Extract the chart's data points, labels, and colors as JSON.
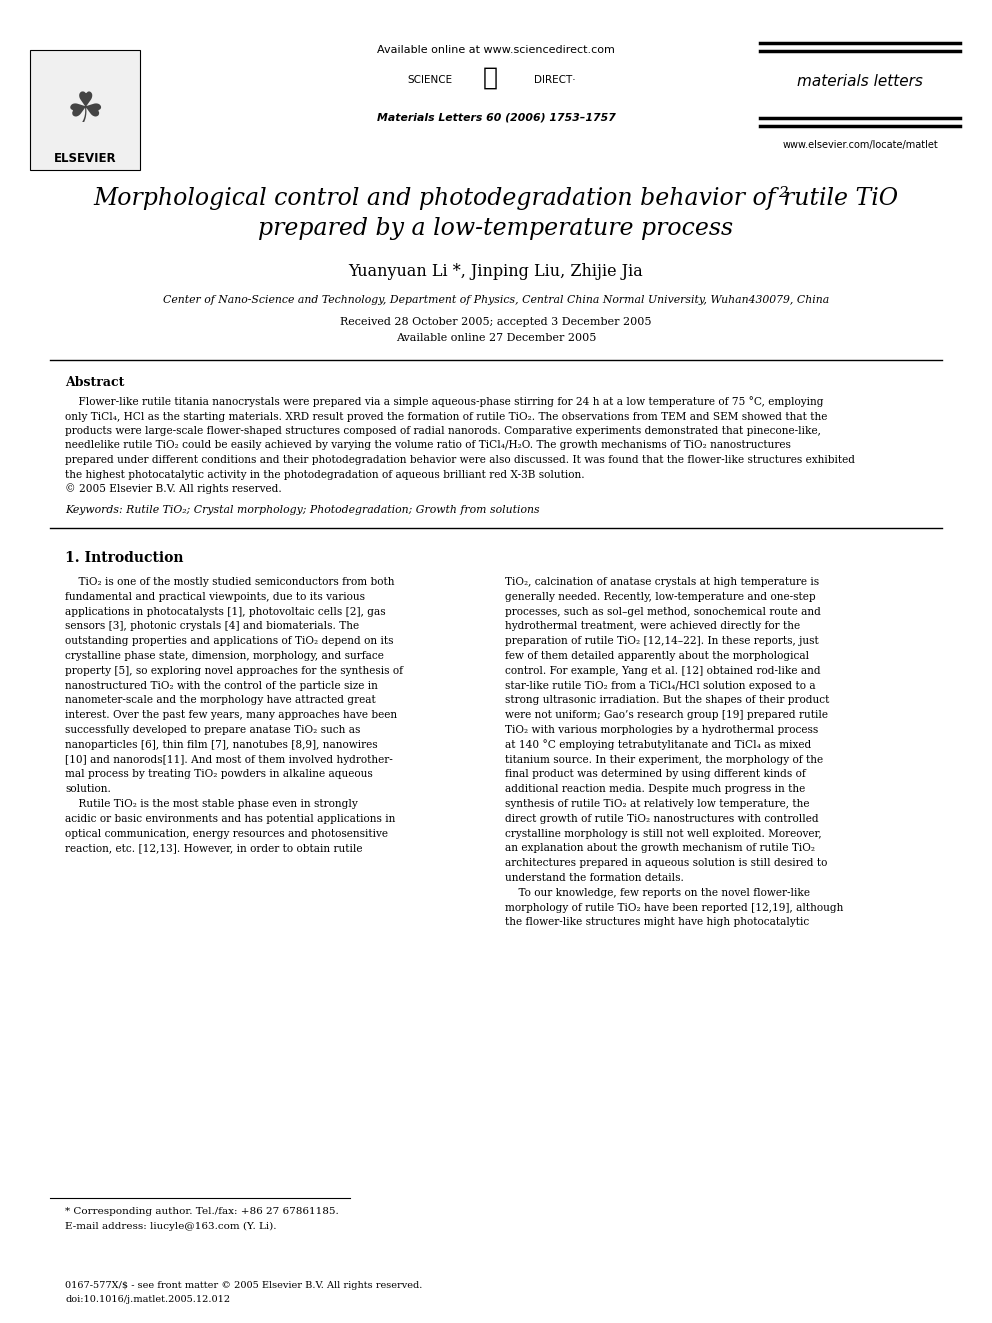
{
  "bg_color": "#ffffff",
  "page_width": 9.92,
  "page_height": 13.23,
  "header_available_online": "Available online at www.sciencedirect.com",
  "header_journal_name": "materials letters",
  "header_journal_ref": "Materials Letters 60 (2006) 1753–1757",
  "header_website": "www.elsevier.com/locate/matlet",
  "title_line1": "Morphological control and photodegradation behavior of rutile TiO",
  "title_line1_sub": "2",
  "title_line2": "prepared by a low-temperature process",
  "authors": "Yuanyuan Li *, Jinping Liu, Zhijie Jia",
  "affiliation": "Center of Nano-Science and Technology, Department of Physics, Central China Normal University, Wuhan430079, China",
  "received": "Received 28 October 2005; accepted 3 December 2005",
  "available": "Available online 27 December 2005",
  "abstract_title": "Abstract",
  "keywords": "Keywords: Rutile TiO₂; Crystal morphology; Photodegradation; Growth from solutions",
  "section1_title": "1. Introduction",
  "footnote1": "* Corresponding author. Tel./fax: +86 27 67861185.",
  "footnote2": "E-mail address: liucyle@163.com (Y. Li).",
  "footer1": "0167-577X/$ - see front matter © 2005 Elsevier B.V. All rights reserved.",
  "footer2": "doi:10.1016/j.matlet.2005.12.012",
  "abstract_lines": [
    "    Flower-like rutile titania nanocrystals were prepared via a simple aqueous-phase stirring for 24 h at a low temperature of 75 °C, employing",
    "only TiCl₄, HCl as the starting materials. XRD result proved the formation of rutile TiO₂. The observations from TEM and SEM showed that the",
    "products were large-scale flower-shaped structures composed of radial nanorods. Comparative experiments demonstrated that pinecone-like,",
    "needlelike rutile TiO₂ could be easily achieved by varying the volume ratio of TiCl₄/H₂O. The growth mechanisms of TiO₂ nanostructures",
    "prepared under different conditions and their photodegradation behavior were also discussed. It was found that the flower-like structures exhibited",
    "the highest photocatalytic activity in the photodegradation of aqueous brilliant red X-3B solution.",
    "© 2005 Elsevier B.V. All rights reserved."
  ],
  "left_col_lines": [
    "    TiO₂ is one of the mostly studied semiconductors from both",
    "fundamental and practical viewpoints, due to its various",
    "applications in photocatalysts [1], photovoltaic cells [2], gas",
    "sensors [3], photonic crystals [4] and biomaterials. The",
    "outstanding properties and applications of TiO₂ depend on its",
    "crystalline phase state, dimension, morphology, and surface",
    "property [5], so exploring novel approaches for the synthesis of",
    "nanostructured TiO₂ with the control of the particle size in",
    "nanometer-scale and the morphology have attracted great",
    "interest. Over the past few years, many approaches have been",
    "successfully developed to prepare anatase TiO₂ such as",
    "nanoparticles [6], thin film [7], nanotubes [8,9], nanowires",
    "[10] and nanorods[11]. And most of them involved hydrother-",
    "mal process by treating TiO₂ powders in alkaline aqueous",
    "solution.",
    "    Rutile TiO₂ is the most stable phase even in strongly",
    "acidic or basic environments and has potential applications in",
    "optical communication, energy resources and photosensitive",
    "reaction, etc. [12,13]. However, in order to obtain rutile"
  ],
  "right_col_lines": [
    "TiO₂, calcination of anatase crystals at high temperature is",
    "generally needed. Recently, low-temperature and one-step",
    "processes, such as sol–gel method, sonochemical route and",
    "hydrothermal treatment, were achieved directly for the",
    "preparation of rutile TiO₂ [12,14–22]. In these reports, just",
    "few of them detailed apparently about the morphological",
    "control. For example, Yang et al. [12] obtained rod-like and",
    "star-like rutile TiO₂ from a TiCl₄/HCl solution exposed to a",
    "strong ultrasonic irradiation. But the shapes of their product",
    "were not uniform; Gao’s research group [19] prepared rutile",
    "TiO₂ with various morphologies by a hydrothermal process",
    "at 140 °C employing tetrabutylitanate and TiCl₄ as mixed",
    "titanium source. In their experiment, the morphology of the",
    "final product was determined by using different kinds of",
    "additional reaction media. Despite much progress in the",
    "synthesis of rutile TiO₂ at relatively low temperature, the",
    "direct growth of rutile TiO₂ nanostructures with controlled",
    "crystalline morphology is still not well exploited. Moreover,",
    "an explanation about the growth mechanism of rutile TiO₂",
    "architectures prepared in aqueous solution is still desired to",
    "understand the formation details.",
    "    To our knowledge, few reports on the novel flower-like",
    "morphology of rutile TiO₂ have been reported [12,19], although",
    "the flower-like structures might have high photocatalytic"
  ]
}
